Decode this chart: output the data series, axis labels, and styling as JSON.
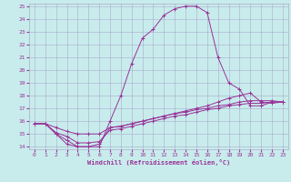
{
  "xlabel": "Windchill (Refroidissement éolien,°C)",
  "xlim": [
    -0.5,
    23.5
  ],
  "ylim": [
    13.8,
    25.2
  ],
  "xticks": [
    0,
    1,
    2,
    3,
    4,
    5,
    6,
    7,
    8,
    9,
    10,
    11,
    12,
    13,
    14,
    15,
    16,
    17,
    18,
    19,
    20,
    21,
    22,
    23
  ],
  "yticks": [
    14,
    15,
    16,
    17,
    18,
    19,
    20,
    21,
    22,
    23,
    24,
    25
  ],
  "bg_color": "#c8ecec",
  "line_color": "#993399",
  "grid_color": "#aaaacc",
  "lines": [
    {
      "x": [
        0,
        1,
        2,
        3,
        4,
        5,
        6,
        7,
        8,
        9,
        10,
        11,
        12,
        13,
        14,
        15,
        16,
        17,
        18,
        19,
        20,
        21,
        22,
        23
      ],
      "y": [
        15.8,
        15.8,
        15.0,
        14.2,
        14.0,
        14.0,
        14.0,
        16.0,
        18.0,
        20.5,
        22.5,
        23.2,
        24.3,
        24.8,
        25.0,
        25.0,
        24.5,
        21.0,
        19.0,
        18.5,
        17.2,
        17.2,
        17.5,
        17.5
      ]
    },
    {
      "x": [
        0,
        1,
        2,
        3,
        4,
        5,
        6,
        7,
        8,
        9,
        10,
        11,
        12,
        13,
        14,
        15,
        16,
        17,
        18,
        19,
        20,
        21,
        22,
        23
      ],
      "y": [
        15.8,
        15.8,
        15.0,
        14.5,
        14.0,
        14.0,
        14.2,
        15.5,
        15.6,
        15.8,
        16.0,
        16.2,
        16.4,
        16.6,
        16.8,
        17.0,
        17.2,
        17.5,
        17.8,
        18.0,
        18.2,
        17.5,
        17.4,
        17.5
      ]
    },
    {
      "x": [
        0,
        1,
        2,
        3,
        4,
        5,
        6,
        7,
        8,
        9,
        10,
        11,
        12,
        13,
        14,
        15,
        16,
        17,
        18,
        19,
        20,
        21,
        22,
        23
      ],
      "y": [
        15.8,
        15.8,
        15.1,
        14.8,
        14.3,
        14.3,
        14.4,
        15.3,
        15.4,
        15.6,
        15.8,
        16.0,
        16.2,
        16.4,
        16.5,
        16.7,
        16.9,
        17.0,
        17.2,
        17.3,
        17.4,
        17.4,
        17.5,
        17.5
      ]
    },
    {
      "x": [
        0,
        1,
        2,
        3,
        4,
        5,
        6,
        7,
        8,
        9,
        10,
        11,
        12,
        13,
        14,
        15,
        16,
        17,
        18,
        19,
        20,
        21,
        22,
        23
      ],
      "y": [
        15.8,
        15.8,
        15.5,
        15.2,
        15.0,
        15.0,
        15.0,
        15.5,
        15.6,
        15.8,
        16.0,
        16.2,
        16.4,
        16.6,
        16.7,
        16.9,
        17.0,
        17.2,
        17.3,
        17.5,
        17.6,
        17.6,
        17.6,
        17.5
      ]
    }
  ]
}
